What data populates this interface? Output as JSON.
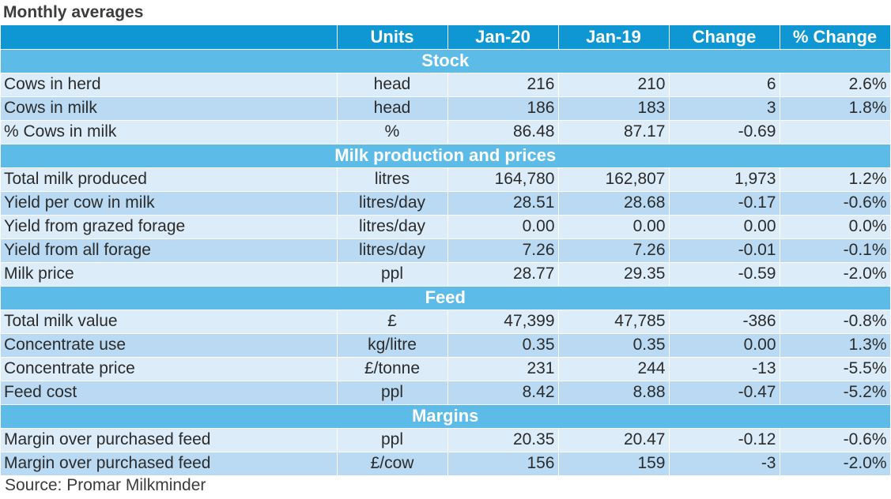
{
  "title": "Monthly averages",
  "headers": [
    "",
    "Units",
    "Jan-20",
    "Jan-19",
    "Change",
    "% Change"
  ],
  "sections": [
    {
      "name": "Stock",
      "rows": [
        {
          "label": "Cows in herd",
          "unit": "head",
          "jan20": "216",
          "jan19": "210",
          "change": "6",
          "pct": "2.6%"
        },
        {
          "label": "Cows in milk",
          "unit": "head",
          "jan20": "186",
          "jan19": "183",
          "change": "3",
          "pct": "1.8%"
        },
        {
          "label": "% Cows in milk",
          "unit": "%",
          "jan20": "86.48",
          "jan19": "87.17",
          "change": "-0.69",
          "pct": ""
        }
      ]
    },
    {
      "name": "Milk production and prices",
      "rows": [
        {
          "label": "Total milk produced",
          "unit": "litres",
          "jan20": "164,780",
          "jan19": "162,807",
          "change": "1,973",
          "pct": "1.2%"
        },
        {
          "label": "Yield per cow in milk",
          "unit": "litres/day",
          "jan20": "28.51",
          "jan19": "28.68",
          "change": "-0.17",
          "pct": "-0.6%"
        },
        {
          "label": "Yield from grazed forage",
          "unit": "litres/day",
          "jan20": "0.00",
          "jan19": "0.00",
          "change": "0.00",
          "pct": "0.0%"
        },
        {
          "label": "Yield from all forage",
          "unit": "litres/day",
          "jan20": "7.26",
          "jan19": "7.26",
          "change": "-0.01",
          "pct": "-0.1%"
        },
        {
          "label": "Milk price",
          "unit": "ppl",
          "jan20": "28.77",
          "jan19": "29.35",
          "change": "-0.59",
          "pct": "-2.0%"
        }
      ]
    },
    {
      "name": "Feed",
      "rows": [
        {
          "label": "Total milk value",
          "unit": "£",
          "jan20": "47,399",
          "jan19": "47,785",
          "change": "-386",
          "pct": "-0.8%"
        },
        {
          "label": "Concentrate use",
          "unit": "kg/litre",
          "jan20": "0.35",
          "jan19": "0.35",
          "change": "0.00",
          "pct": "1.3%"
        },
        {
          "label": "Concentrate price",
          "unit": "£/tonne",
          "jan20": "231",
          "jan19": "244",
          "change": "-13",
          "pct": "-5.5%"
        },
        {
          "label": "Feed cost",
          "unit": "ppl",
          "jan20": "8.42",
          "jan19": "8.88",
          "change": "-0.47",
          "pct": "-5.2%"
        }
      ]
    },
    {
      "name": "Margins",
      "rows": [
        {
          "label": "Margin over purchased feed",
          "unit": "ppl",
          "jan20": "20.35",
          "jan19": "20.47",
          "change": "-0.12",
          "pct": "-0.6%"
        },
        {
          "label": "Margin over purchased feed",
          "unit": "£/cow",
          "jan20": "156",
          "jan19": "159",
          "change": "-3",
          "pct": "-2.0%"
        }
      ]
    }
  ],
  "source": "Source: Promar Milkminder",
  "colors": {
    "header_bg": "#0f97d4",
    "section_bg": "#5dbbe8",
    "row_light": "#dcecf8",
    "row_dark": "#b9daf2"
  }
}
